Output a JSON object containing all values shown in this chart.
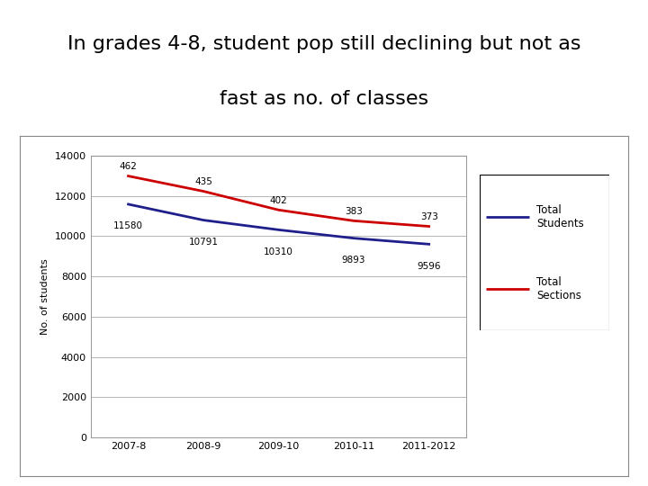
{
  "title_line1": "In grades 4-8, student pop still declining but not as",
  "title_line2": "fast as no. of classes",
  "title_bg_color": "#aed4dc",
  "categories": [
    "2007-8",
    "2008-9",
    "2009-10",
    "2010-11",
    "2011-2012"
  ],
  "total_students": [
    11580,
    10791,
    10310,
    9893,
    9596
  ],
  "total_sections_scaled": [
    12982,
    12224,
    11296,
    10757,
    10481
  ],
  "total_sections_labels": [
    462,
    435,
    402,
    383,
    373
  ],
  "students_color": "#1F1F8B",
  "sections_color": "#CC0000",
  "ylabel": "No. of students",
  "ylim": [
    0,
    14000
  ],
  "yticks": [
    0,
    2000,
    4000,
    6000,
    8000,
    10000,
    12000,
    14000
  ],
  "grid_color": "#aaaaaa",
  "legend_label_students": "Total\nStudents",
  "legend_label_sections": "Total\nSections",
  "annotation_fontsize": 7.5,
  "axis_fontsize": 8,
  "title_fontsize": 16
}
